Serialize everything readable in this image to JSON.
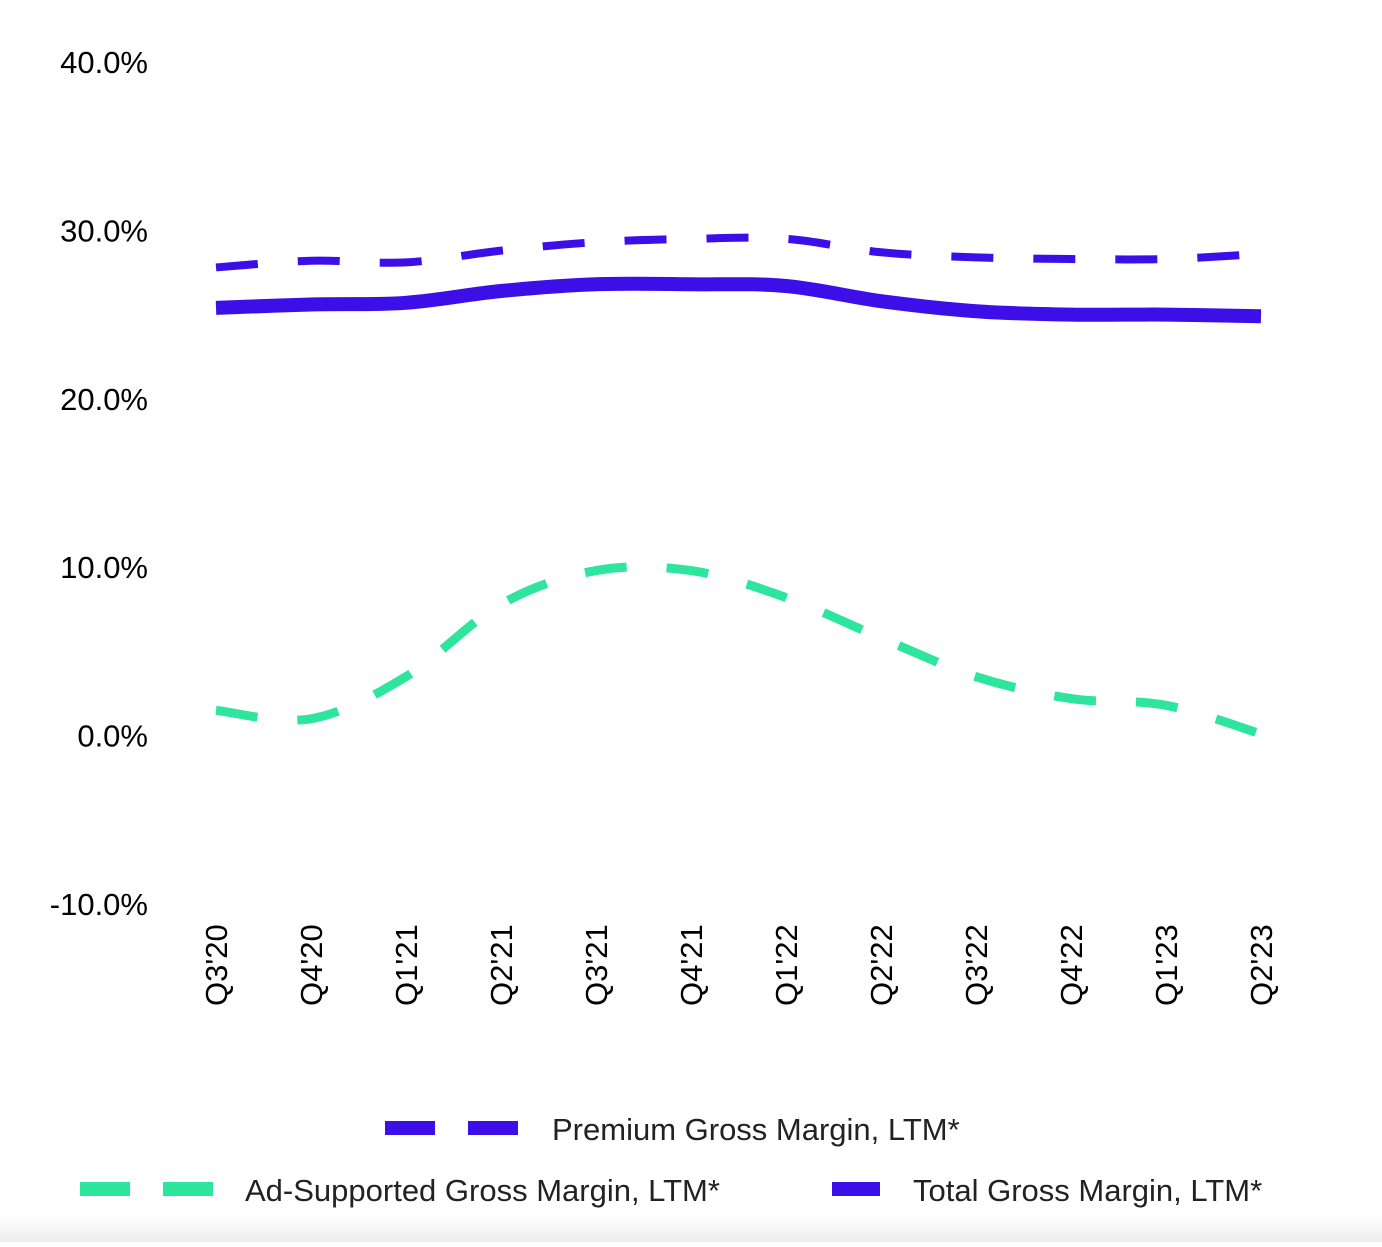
{
  "chart_data": {
    "type": "line",
    "categories": [
      "Q3'20",
      "Q4'20",
      "Q1'21",
      "Q2'21",
      "Q3'21",
      "Q4'21",
      "Q1'22",
      "Q2'22",
      "Q3'22",
      "Q4'22",
      "Q1'23",
      "Q2'23"
    ],
    "y_ticks": [
      "40.0%",
      "30.0%",
      "20.0%",
      "10.0%",
      "0.0%",
      "-10.0%"
    ],
    "ylim": [
      -10,
      40
    ],
    "grid": false,
    "legend_position": "bottom",
    "series": [
      {
        "name": "Premium Gross Margin, LTM*",
        "style": "dashed",
        "color": "#3d0fe8",
        "values": [
          27.8,
          28.2,
          28.1,
          28.8,
          29.3,
          29.5,
          29.5,
          28.7,
          28.4,
          28.3,
          28.3,
          28.6
        ]
      },
      {
        "name": "Ad-Supported Gross Margin, LTM*",
        "style": "dashed",
        "color": "#2ee59d",
        "values": [
          1.5,
          1.0,
          3.5,
          7.8,
          9.8,
          9.8,
          8.2,
          5.8,
          3.5,
          2.2,
          1.8,
          0.1
        ]
      },
      {
        "name": "Total Gross Margin, LTM*",
        "style": "solid",
        "color": "#3d0fe8",
        "values": [
          25.4,
          25.6,
          25.7,
          26.4,
          26.8,
          26.8,
          26.7,
          25.8,
          25.2,
          25.0,
          25.0,
          24.9
        ]
      }
    ]
  }
}
